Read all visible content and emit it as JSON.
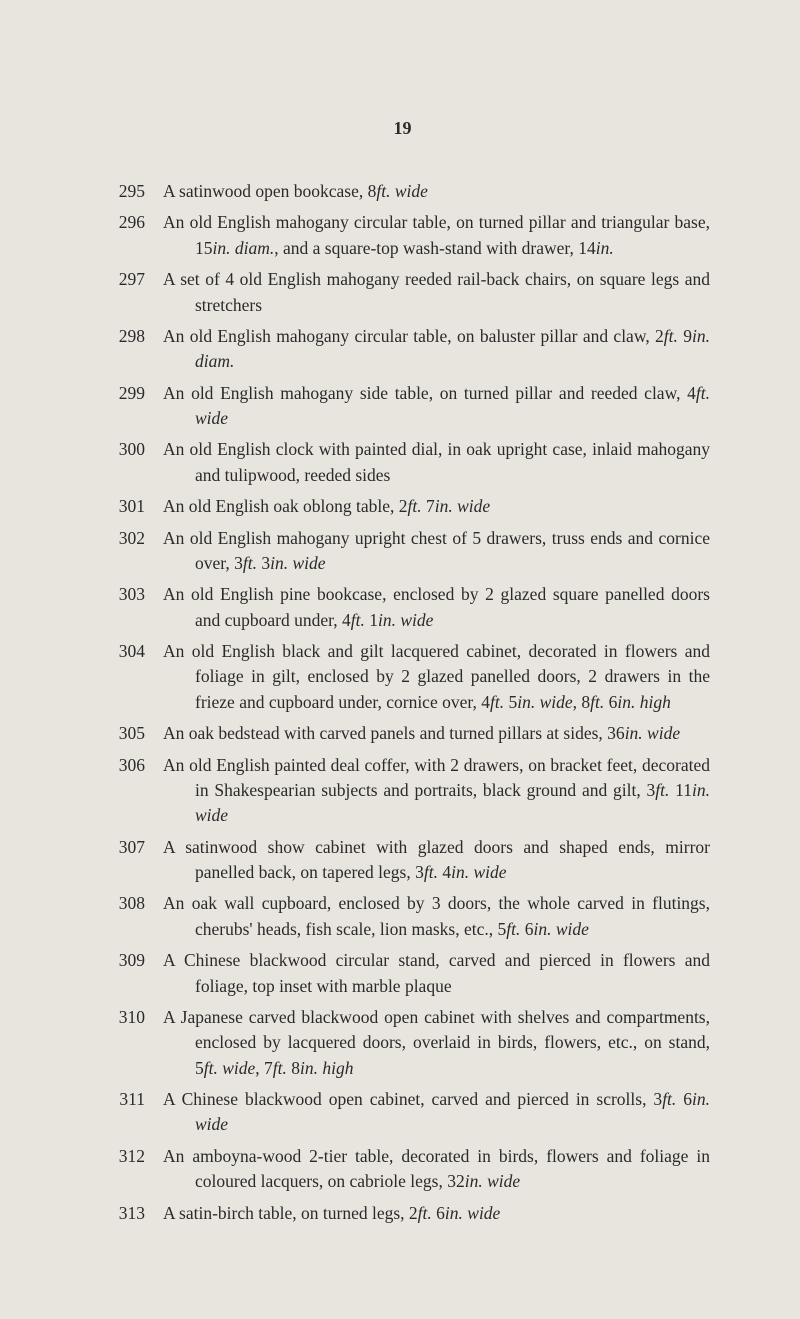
{
  "page_number": "19",
  "entries": [
    {
      "lot": "295",
      "lines": [
        "A satinwood open bookcase, 8<i>ft. wide</i>"
      ]
    },
    {
      "lot": "296",
      "lines": [
        "An old English mahogany circular table, on turned pillar and triangular base, 15<i>in. diam.</i>, and a square-top wash-stand with drawer, 14<i>in.</i>"
      ]
    },
    {
      "lot": "297",
      "lines": [
        "A set of 4 old English mahogany reeded rail-back chairs, on square legs and stretchers"
      ]
    },
    {
      "lot": "298",
      "lines": [
        "An old English mahogany circular table, on baluster pillar and claw, 2<i>ft.</i> 9<i>in. diam.</i>"
      ]
    },
    {
      "lot": "299",
      "lines": [
        "An old English mahogany side table, on turned pillar and reeded claw, 4<i>ft. wide</i>"
      ]
    },
    {
      "lot": "300",
      "lines": [
        "An old English clock with painted dial, in oak upright case, inlaid mahogany and tulipwood, reeded sides"
      ]
    },
    {
      "lot": "301",
      "lines": [
        "An old English oak oblong table, 2<i>ft.</i> 7<i>in. wide</i>"
      ]
    },
    {
      "lot": "302",
      "lines": [
        "An old English mahogany upright chest of 5 drawers, truss ends and cornice over, 3<i>ft.</i> 3<i>in. wide</i>"
      ]
    },
    {
      "lot": "303",
      "lines": [
        "An old English pine bookcase, enclosed by 2 glazed square panelled doors and cupboard under, 4<i>ft.</i> 1<i>in. wide</i>"
      ]
    },
    {
      "lot": "304",
      "lines": [
        "An old English black and gilt lacquered cabinet, decorated in flowers and foliage in gilt, enclosed by 2 glazed panelled doors, 2 drawers in the frieze and cupboard under, cornice over, 4<i>ft.</i> 5<i>in. wide</i>, 8<i>ft.</i> 6<i>in. high</i>"
      ]
    },
    {
      "lot": "305",
      "lines": [
        "An oak bedstead with carved panels and turned pillars at sides, 36<i>in. wide</i>"
      ]
    },
    {
      "lot": "306",
      "lines": [
        "An old English painted deal coffer, with 2 drawers, on bracket feet, decorated in Shakespearian subjects and portraits, black ground and gilt, 3<i>ft.</i> 11<i>in. wide</i>"
      ]
    },
    {
      "lot": "307",
      "lines": [
        "A satinwood show cabinet with glazed doors and shaped ends, mirror panelled back, on tapered legs, 3<i>ft.</i> 4<i>in. wide</i>"
      ]
    },
    {
      "lot": "308",
      "lines": [
        "An oak wall cupboard, enclosed by 3 doors, the whole carved in flutings, cherubs' heads, fish scale, lion masks, etc., 5<i>ft.</i> 6<i>in. wide</i>"
      ]
    },
    {
      "lot": "309",
      "lines": [
        "A Chinese blackwood circular stand, carved and pierced in flowers and foliage, top inset with marble plaque"
      ]
    },
    {
      "lot": "310",
      "lines": [
        "A Japanese carved blackwood open cabinet with shelves and compartments, enclosed by lacquered doors, overlaid in birds, flowers, etc., on stand, 5<i>ft. wide</i>, 7<i>ft.</i> 8<i>in. high</i>"
      ]
    },
    {
      "lot": "311",
      "lines": [
        "A Chinese blackwood open cabinet, carved and pierced in scrolls, 3<i>ft.</i> 6<i>in. wide</i>"
      ]
    },
    {
      "lot": "312",
      "lines": [
        "An amboyna-wood 2-tier table, decorated in birds, flowers and foliage in coloured lacquers, on cabriole legs, 32<i>in. wide</i>"
      ]
    },
    {
      "lot": "313",
      "lines": [
        "A satin-birch table, on turned legs, 2<i>ft.</i> 6<i>in. wide</i>"
      ]
    }
  ]
}
